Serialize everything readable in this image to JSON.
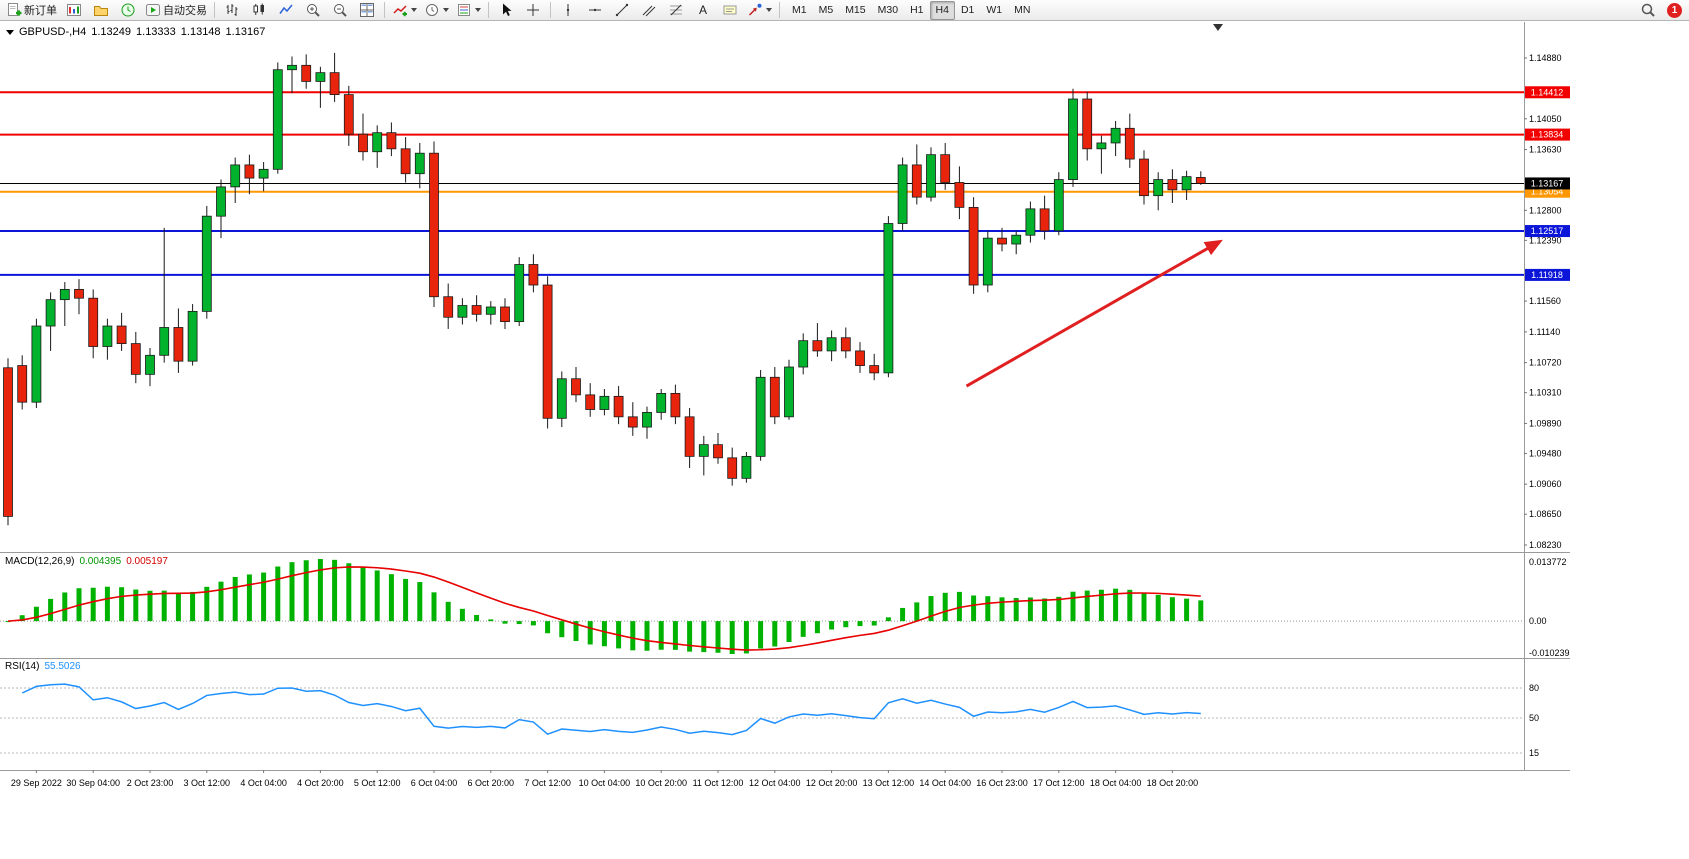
{
  "toolbar": {
    "buttons": [
      {
        "id": "new-order",
        "icon": "new-order-icon",
        "label": "新订单"
      },
      {
        "id": "charts",
        "icon": "charts-icon"
      },
      {
        "id": "profiles",
        "icon": "profiles-icon"
      },
      {
        "id": "terminal",
        "icon": "terminal-icon"
      },
      {
        "id": "autotrading",
        "icon": "autotrading-icon",
        "label": "自动交易"
      },
      {
        "sep": true
      },
      {
        "id": "bars-mode",
        "icon": "bars-chart-icon"
      },
      {
        "id": "candles-mode",
        "icon": "candlestick-chart-icon"
      },
      {
        "id": "line-mode",
        "icon": "line-chart-icon"
      },
      {
        "id": "zoom-in",
        "icon": "zoom-in-icon"
      },
      {
        "id": "zoom-out",
        "icon": "zoom-out-icon"
      },
      {
        "id": "tile-windows",
        "icon": "tile-windows-icon"
      },
      {
        "sep": true
      },
      {
        "id": "indicators",
        "icon": "indicators-icon",
        "caret": true
      },
      {
        "id": "periods",
        "icon": "periods-icon",
        "caret": true
      },
      {
        "id": "templates",
        "icon": "templates-icon",
        "caret": true
      },
      {
        "sep": true
      },
      {
        "id": "cursor",
        "icon": "cursor-icon"
      },
      {
        "id": "crosshair",
        "icon": "crosshair-icon"
      },
      {
        "sep": true
      },
      {
        "id": "vertical-line",
        "icon": "vertical-line-icon"
      },
      {
        "id": "horizontal-line",
        "icon": "horizontal-line-icon"
      },
      {
        "id": "trendline",
        "icon": "trendline-icon"
      },
      {
        "id": "equidistant-channel",
        "icon": "channel-icon"
      },
      {
        "id": "fibonacci",
        "icon": "fibonacci-icon"
      },
      {
        "id": "text",
        "icon": "text-icon"
      },
      {
        "id": "text-label",
        "icon": "text-label-icon"
      },
      {
        "id": "arrows",
        "icon": "arrows-icon",
        "caret": true
      },
      {
        "sep": true
      }
    ],
    "timeframes": [
      "M1",
      "M5",
      "M15",
      "M30",
      "H1",
      "H4",
      "D1",
      "W1",
      "MN"
    ],
    "active_timeframe": "H4",
    "notification_count": "1"
  },
  "chart_data": {
    "type": "candlestick",
    "symbol": "GBPUSD-",
    "timeframe": "H4",
    "title": {
      "symbol_period": "GBPUSD-,H4",
      "open": "1.13249",
      "high": "1.13333",
      "low": "1.13148",
      "close": "1.13167"
    },
    "up_color": "#00b22c",
    "down_color": "#e8250c",
    "wick_color": "#1a1a1a",
    "ohlc": [
      [
        1.1065,
        1.1078,
        1.085,
        1.0862
      ],
      [
        1.1068,
        1.1082,
        1.1008,
        1.1018
      ],
      [
        1.1018,
        1.1132,
        1.101,
        1.1122
      ],
      [
        1.1122,
        1.1168,
        1.1088,
        1.1158
      ],
      [
        1.1158,
        1.1182,
        1.1122,
        1.1172
      ],
      [
        1.1172,
        1.1186,
        1.1138,
        1.116
      ],
      [
        1.116,
        1.1172,
        1.1078,
        1.1094
      ],
      [
        1.1094,
        1.1132,
        1.1076,
        1.1122
      ],
      [
        1.1122,
        1.114,
        1.1088,
        1.1098
      ],
      [
        1.1098,
        1.1114,
        1.1044,
        1.1056
      ],
      [
        1.1056,
        1.1092,
        1.104,
        1.1082
      ],
      [
        1.1082,
        1.1256,
        1.1072,
        1.112
      ],
      [
        1.112,
        1.1146,
        1.1058,
        1.1074
      ],
      [
        1.1074,
        1.1152,
        1.1068,
        1.1142
      ],
      [
        1.1142,
        1.1286,
        1.1132,
        1.1272
      ],
      [
        1.1272,
        1.1322,
        1.1242,
        1.1312
      ],
      [
        1.1312,
        1.1352,
        1.129,
        1.1342
      ],
      [
        1.1342,
        1.1356,
        1.1302,
        1.1324
      ],
      [
        1.1324,
        1.1346,
        1.1306,
        1.1336
      ],
      [
        1.1336,
        1.1482,
        1.133,
        1.1472
      ],
      [
        1.1472,
        1.149,
        1.144,
        1.1478
      ],
      [
        1.1478,
        1.1493,
        1.1446,
        1.1456
      ],
      [
        1.1456,
        1.1476,
        1.142,
        1.1468
      ],
      [
        1.1468,
        1.1495,
        1.1428,
        1.1438
      ],
      [
        1.1438,
        1.145,
        1.1368,
        1.1384
      ],
      [
        1.1384,
        1.1412,
        1.1348,
        1.136
      ],
      [
        1.136,
        1.1396,
        1.1338,
        1.1386
      ],
      [
        1.1386,
        1.14,
        1.1354,
        1.1364
      ],
      [
        1.1364,
        1.138,
        1.1318,
        1.133
      ],
      [
        1.133,
        1.1372,
        1.131,
        1.1358
      ],
      [
        1.1358,
        1.1374,
        1.1148,
        1.1162
      ],
      [
        1.1162,
        1.118,
        1.1118,
        1.1134
      ],
      [
        1.1134,
        1.116,
        1.1124,
        1.115
      ],
      [
        1.115,
        1.1164,
        1.1128,
        1.1138
      ],
      [
        1.1138,
        1.1156,
        1.1124,
        1.1148
      ],
      [
        1.1148,
        1.116,
        1.1118,
        1.1128
      ],
      [
        1.1128,
        1.1216,
        1.1122,
        1.1206
      ],
      [
        1.1206,
        1.122,
        1.1168,
        1.1178
      ],
      [
        1.1178,
        1.119,
        1.0982,
        1.0996
      ],
      [
        1.0996,
        1.106,
        1.0984,
        1.105
      ],
      [
        1.105,
        1.1066,
        1.1018,
        1.1028
      ],
      [
        1.1028,
        1.1044,
        1.0998,
        1.1008
      ],
      [
        1.1008,
        1.1036,
        1.1,
        1.1026
      ],
      [
        1.1026,
        1.104,
        1.0988,
        1.0998
      ],
      [
        1.0998,
        1.1018,
        1.0972,
        1.0984
      ],
      [
        1.0984,
        1.1012,
        1.0968,
        1.1004
      ],
      [
        1.1004,
        1.1036,
        1.0994,
        1.103
      ],
      [
        1.103,
        1.1042,
        1.0988,
        1.0998
      ],
      [
        1.0998,
        1.101,
        1.0928,
        1.0944
      ],
      [
        1.0944,
        1.0972,
        1.0918,
        1.096
      ],
      [
        1.096,
        1.0976,
        1.0934,
        1.0942
      ],
      [
        1.0942,
        1.0956,
        1.0904,
        1.0914
      ],
      [
        1.0914,
        1.095,
        1.0908,
        1.0944
      ],
      [
        1.0944,
        1.1062,
        1.0938,
        1.1052
      ],
      [
        1.1052,
        1.1066,
        1.0988,
        1.0998
      ],
      [
        1.0998,
        1.1076,
        1.0994,
        1.1066
      ],
      [
        1.1066,
        1.1112,
        1.1056,
        1.1102
      ],
      [
        1.1102,
        1.1126,
        1.108,
        1.1088
      ],
      [
        1.1088,
        1.1116,
        1.1074,
        1.1106
      ],
      [
        1.1106,
        1.112,
        1.1078,
        1.1088
      ],
      [
        1.1088,
        1.11,
        1.1058,
        1.1068
      ],
      [
        1.1068,
        1.1084,
        1.1048,
        1.1058
      ],
      [
        1.1058,
        1.1272,
        1.1052,
        1.1262
      ],
      [
        1.1262,
        1.1352,
        1.1252,
        1.1342
      ],
      [
        1.1342,
        1.137,
        1.1288,
        1.1298
      ],
      [
        1.1298,
        1.1366,
        1.1292,
        1.1356
      ],
      [
        1.1356,
        1.1372,
        1.1308,
        1.1318
      ],
      [
        1.1318,
        1.134,
        1.1268,
        1.1284
      ],
      [
        1.1284,
        1.1298,
        1.1166,
        1.1178
      ],
      [
        1.1178,
        1.1252,
        1.1168,
        1.1242
      ],
      [
        1.1242,
        1.1256,
        1.1224,
        1.1234
      ],
      [
        1.1234,
        1.1252,
        1.122,
        1.1246
      ],
      [
        1.1246,
        1.1292,
        1.1236,
        1.1282
      ],
      [
        1.1282,
        1.13,
        1.124,
        1.1252
      ],
      [
        1.1252,
        1.1332,
        1.1246,
        1.1322
      ],
      [
        1.1322,
        1.1446,
        1.1312,
        1.1432
      ],
      [
        1.1432,
        1.1442,
        1.1348,
        1.1364
      ],
      [
        1.1364,
        1.1382,
        1.133,
        1.1372
      ],
      [
        1.1372,
        1.1402,
        1.1354,
        1.1392
      ],
      [
        1.1392,
        1.1412,
        1.1338,
        1.135
      ],
      [
        1.135,
        1.1362,
        1.1288,
        1.13
      ],
      [
        1.13,
        1.1332,
        1.128,
        1.1322
      ],
      [
        1.1322,
        1.1336,
        1.129,
        1.1308
      ],
      [
        1.1308,
        1.1334,
        1.1294,
        1.1326
      ],
      [
        1.13249,
        1.13333,
        1.13148,
        1.13167
      ]
    ],
    "price_axis_labels": [
      "1.14880",
      "1.14050",
      "1.13630",
      "1.12800",
      "1.12390",
      "1.11560",
      "1.11140",
      "1.10720",
      "1.10310",
      "1.09890",
      "1.09480",
      "1.09060",
      "1.08650",
      "1.08230"
    ],
    "time_axis_labels": [
      "29 Sep 2022",
      "30 Sep 04:00",
      "2 Oct 23:00",
      "3 Oct 12:00",
      "4 Oct 04:00",
      "4 Oct 20:00",
      "5 Oct 12:00",
      "6 Oct 04:00",
      "6 Oct 20:00",
      "7 Oct 12:00",
      "10 Oct 04:00",
      "10 Oct 20:00",
      "11 Oct 12:00",
      "12 Oct 04:00",
      "12 Oct 20:00",
      "13 Oct 12:00",
      "14 Oct 04:00",
      "16 Oct 23:00",
      "17 Oct 12:00",
      "18 Oct 04:00",
      "18 Oct 20:00"
    ],
    "horizontal_lines": [
      {
        "price": 1.14412,
        "label": "1.14412",
        "color": "#f20000",
        "width": 2,
        "role": "resistance"
      },
      {
        "price": 1.13834,
        "label": "1.13834",
        "color": "#f20000",
        "width": 2,
        "role": "resistance"
      },
      {
        "price": 1.13054,
        "label": "1.13054",
        "color": "#ff9800",
        "width": 2,
        "role": "pivot"
      },
      {
        "price": 1.13167,
        "label": "1.13167",
        "color": "#000000",
        "width": 1,
        "role": "bid"
      },
      {
        "price": 1.12517,
        "label": "1.12517",
        "color": "#0b16d8",
        "width": 2,
        "role": "support"
      },
      {
        "price": 1.11918,
        "label": "1.11918",
        "color": "#0b16d8",
        "width": 2,
        "role": "support"
      }
    ],
    "arrow": {
      "from_index": 67.5,
      "from_price": 1.104,
      "to_index": 85.3,
      "to_price": 1.1237,
      "color": "#e02020"
    },
    "macd": {
      "label": "MACD(12,26,9)",
      "fast": 12,
      "slow": 26,
      "signal_period": 9,
      "value_main": "0.004395",
      "value_signal": "0.005197",
      "axis_max_label": "0.013772",
      "axis_zero_label": "0.00",
      "axis_min_label": "-0.010239",
      "hist_color": "#00b200",
      "signal_color": "#e80000"
    },
    "rsi": {
      "label": "RSI(14)",
      "period": 14,
      "value": "55.5026",
      "levels": [
        80,
        50,
        15
      ],
      "level_labels": [
        "80",
        "50",
        "15"
      ],
      "line_color": "#1e90ff"
    }
  }
}
